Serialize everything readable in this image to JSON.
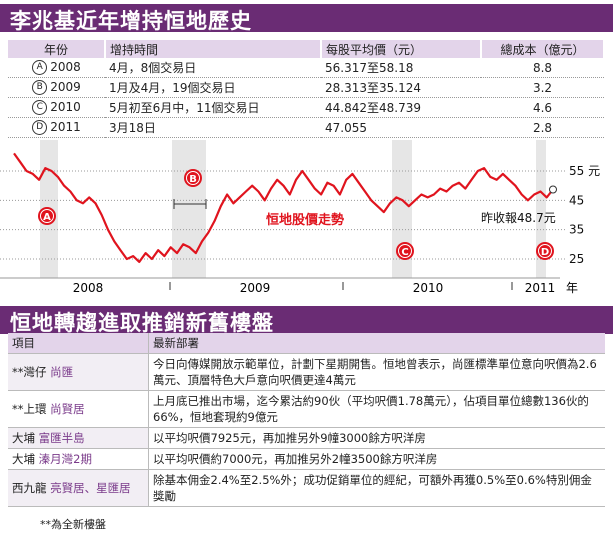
{
  "title1": "李兆基近年增持恒地歷史",
  "table1": {
    "headers": [
      "年份",
      "增持時間",
      "每股平均價（元）",
      "總成本（億元）"
    ],
    "rows": [
      {
        "marker": "A",
        "year": "2008",
        "time": "4月，8個交易日",
        "price": "56.317至58.18",
        "cost": "8.8"
      },
      {
        "marker": "B",
        "year": "2009",
        "time": "1月及4月，19個交易日",
        "price": "28.313至35.124",
        "cost": "3.2"
      },
      {
        "marker": "C",
        "year": "2010",
        "time": "5月初至6月中，11個交易日",
        "price": "44.842至48.739",
        "cost": "4.6"
      },
      {
        "marker": "D",
        "year": "2011",
        "time": "3月18日",
        "price": "47.055",
        "cost": "2.8"
      }
    ]
  },
  "chart_data": {
    "type": "line",
    "title": "恒地股價走勢",
    "ylim": [
      20,
      60
    ],
    "yticks": [
      "55 元",
      "45",
      "35",
      "25"
    ],
    "ytick_values": [
      55,
      45,
      35,
      25
    ],
    "x_labels": [
      "2008",
      "2009",
      "2010",
      "2011",
      "年"
    ],
    "annotation": "昨收報48.7元",
    "last_close": 48.7,
    "markers": [
      "A",
      "B",
      "C",
      "D"
    ],
    "series": [
      {
        "name": "恒地股價",
        "color": "#e0141e",
        "values": [
          61,
          58,
          55,
          54,
          52,
          56,
          55,
          53,
          50,
          48,
          45,
          44,
          46,
          44,
          40,
          35,
          31,
          28,
          25,
          26,
          24,
          27,
          25,
          28,
          26,
          29,
          27,
          30,
          29,
          27,
          31,
          34,
          38,
          43,
          47,
          44,
          46,
          48,
          50,
          48,
          45,
          49,
          52,
          50,
          47,
          52,
          55,
          52,
          49,
          47,
          51,
          50,
          47,
          52,
          54,
          51,
          48,
          45,
          43,
          41,
          44,
          46,
          45,
          43,
          45,
          47,
          46,
          47,
          49,
          48,
          50,
          51,
          49,
          52,
          55,
          56,
          53,
          52,
          54,
          52,
          50,
          47,
          45,
          47,
          48,
          46,
          48.7
        ]
      }
    ]
  },
  "title2": "恒地轉趨進取推銷新舊樓盤",
  "table2": {
    "headers": [
      "項目",
      "最新部署"
    ],
    "rows": [
      {
        "prefix": "**灣仔 ",
        "name": "尚匯",
        "text": "今日向傳媒開放示範單位，計劃下星期開售。恒地曾表示，尚匯標準單位意向呎價為2.6萬元、頂層特色大戶意向呎價更達4萬元"
      },
      {
        "prefix": "**上環 ",
        "name": "尚賢居",
        "text": "上月底已推出市場，迄今累沽約90伙（平均呎價1.78萬元），佔項目單位總數136伙的66%，恒地套現約9億元"
      },
      {
        "prefix": "大埔 ",
        "name": "富匯半島",
        "text": "以平均呎價7925元，再加推另外9幢3000餘方呎洋房"
      },
      {
        "prefix": "大埔 ",
        "name": "溱月灣2期",
        "text": "以平均呎價約7000元，再加推另外2幢3500餘方呎洋房"
      },
      {
        "prefix": "西九龍 ",
        "name": "亮賢居、星匯居",
        "text": "除基本佣金2.4%至2.5%外；成功促銷單位的經紀，可額外再獲0.5%至0.6%特別佣金獎勵"
      }
    ]
  },
  "note": "**為全新樓盤"
}
